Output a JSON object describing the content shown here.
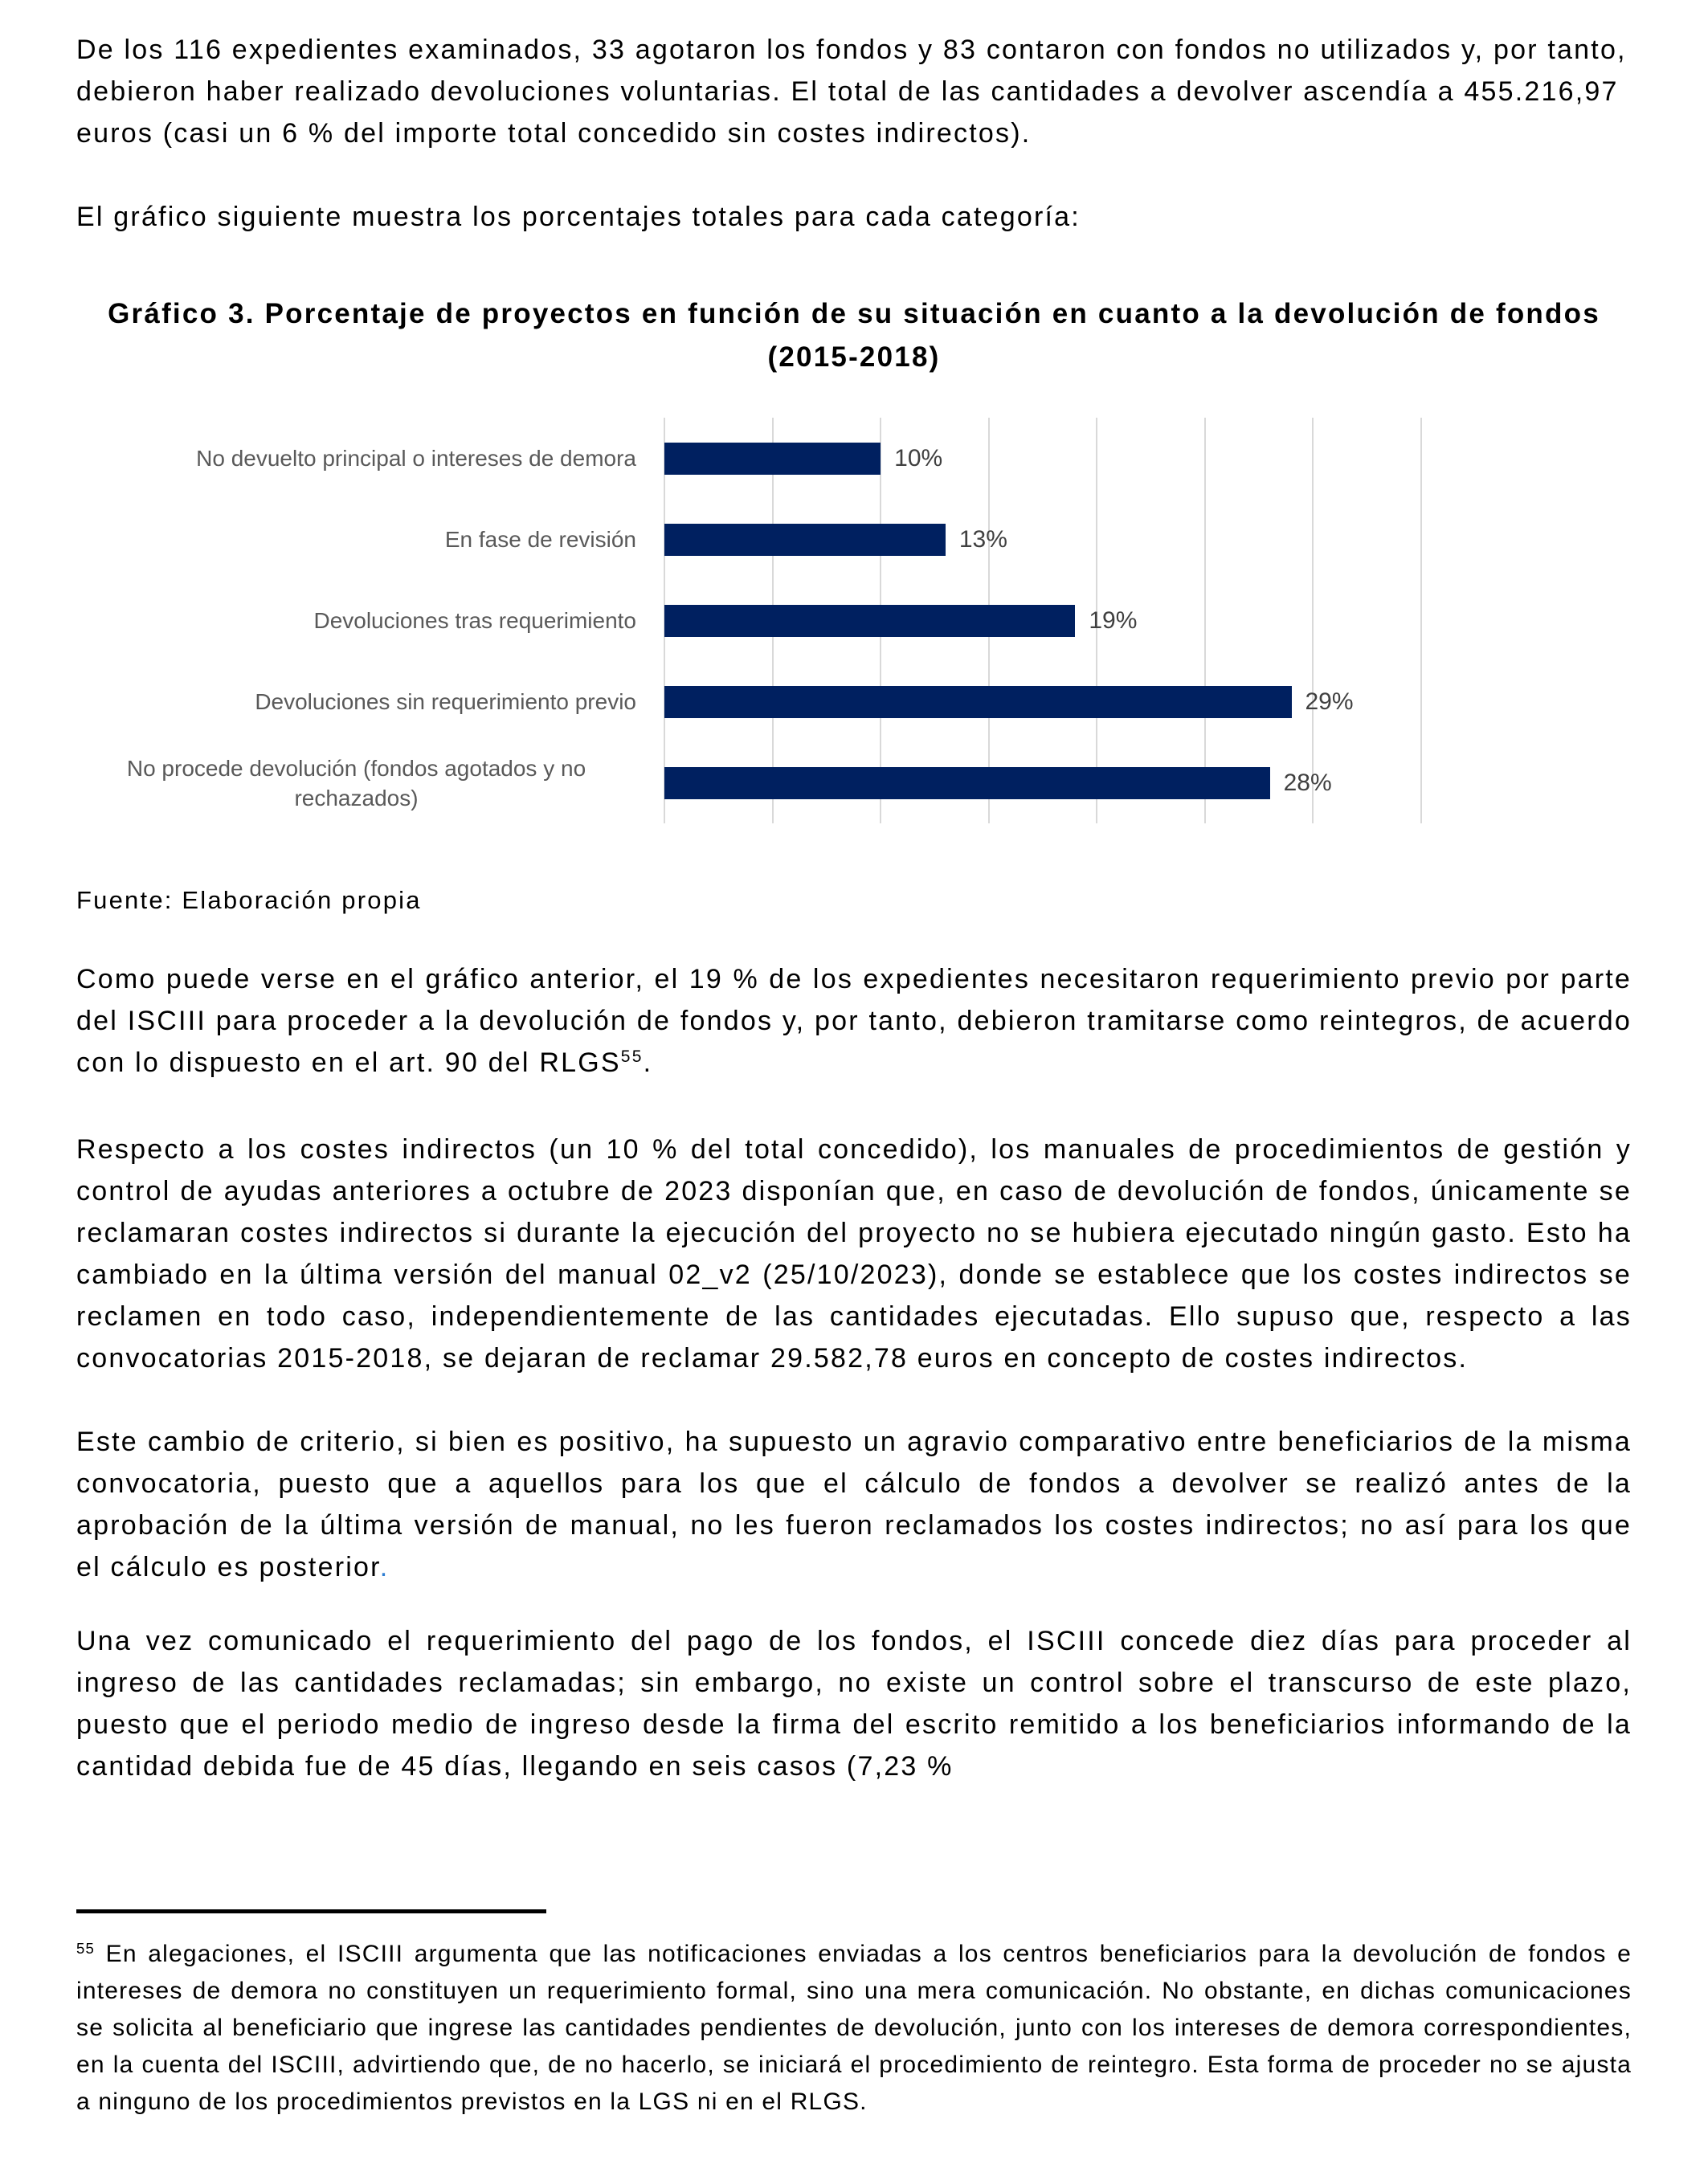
{
  "document": {
    "paragraphs": {
      "intro": "De los 116 expedientes examinados, 33 agotaron los fondos y 83 contaron con fondos no utilizados y, por tanto, debieron haber realizado devoluciones voluntarias. El total de las cantidades a devolver ascendía a 455.216,97 euros (casi un 6 % del importe total concedido sin costes indirectos).",
      "lead_in": "El gráfico siguiente muestra los porcentajes totales para cada categoría:",
      "analysis_before_ref": "Como puede verse en el gráfico anterior, el 19 % de los expedientes necesitaron requerimiento previo por parte del ISCIII para proceder a la devolución de fondos y, por tanto, debieron tramitarse como reintegros, de acuerdo con lo dispuesto en el art. 90 del RLGS",
      "analysis_footnote_ref": "55",
      "analysis_after_ref": ".",
      "indirect_costs": "Respecto a los costes indirectos (un 10 % del total concedido), los manuales de procedimientos de gestión y control de ayudas anteriores a octubre de 2023 disponían que, en caso de devolución de fondos, únicamente se reclamaran costes indirectos si durante la ejecución del proyecto no se hubiera ejecutado ningún gasto. Esto ha cambiado en la última versión del manual 02_v2 (25/10/2023), donde se establece que los costes indirectos se reclamen en todo caso, independientemente de las cantidades ejecutadas. Ello supuso que, respecto a las convocatorias 2015-2018, se dejaran de reclamar 29.582,78 euros en concepto de costes indirectos.",
      "criterion_change_main": "Este cambio de criterio, si bien es positivo, ha supuesto un agravio comparativo entre beneficiarios de la misma convocatoria, puesto que a aquellos para los que el cálculo de fondos a devolver se realizó antes de la aprobación de la última versión de manual, no les fueron reclamados los costes indirectos; no así para los que el cálculo es posterior",
      "criterion_change_period": ".",
      "deadline": "Una vez comunicado el requerimiento del pago de los fondos, el ISCIII concede diez días para proceder al ingreso de las cantidades reclamadas; sin embargo, no existe un control sobre el transcurso de este plazo, puesto que el periodo medio de ingreso desde la firma del escrito remitido a los beneficiarios informando de la cantidad debida fue de 45 días, llegando en seis casos (7,23 %"
    },
    "chart_title": "Gráfico 3. Porcentaje de proyectos en función de su situación en cuanto a la devolución de fondos (2015-2018)",
    "source_note": "Fuente: Elaboración propia",
    "footnote": {
      "marker": "55",
      "text": "En alegaciones, el ISCIII argumenta que las notificaciones enviadas a los centros beneficiarios para la devolución de fondos e intereses de demora no constituyen un requerimiento formal, sino una mera comunicación. No obstante, en dichas comunicaciones se solicita al beneficiario que ingrese las cantidades pendientes de devolución, junto con los intereses de demora correspondientes, en la cuenta del ISCIII, advirtiendo que, de no hacerlo, se iniciará el procedimiento de reintegro. Esta forma de proceder no se ajusta a ninguno de los procedimientos previstos en la LGS ni en el RLGS."
    },
    "colors": {
      "bar": "#002060",
      "gridline": "#d9d9d9",
      "category_label": "#595959",
      "value_label": "#404040",
      "accent_period": "#2d7dd2"
    }
  },
  "chart_data": {
    "type": "bar",
    "orientation": "horizontal",
    "title": "Gráfico 3. Porcentaje de proyectos en función de su situación en cuanto a la devolución de fondos (2015-2018)",
    "categories": [
      "No devuelto principal o intereses de demora",
      "En fase de revisión",
      "Devoluciones tras requerimiento",
      "Devoluciones sin requerimiento previo",
      "No procede devolución (fondos agotados y no rechazados)"
    ],
    "values": [
      10,
      13,
      19,
      29,
      28
    ],
    "value_labels": [
      "10%",
      "13%",
      "19%",
      "29%",
      "28%"
    ],
    "xlabel": "",
    "ylabel": "",
    "xlim": [
      0,
      35
    ],
    "gridline_step": 5,
    "grid": "vertical-only",
    "legend": "none",
    "data_labels": "outside-end",
    "source": "Fuente: Elaboración propia"
  }
}
